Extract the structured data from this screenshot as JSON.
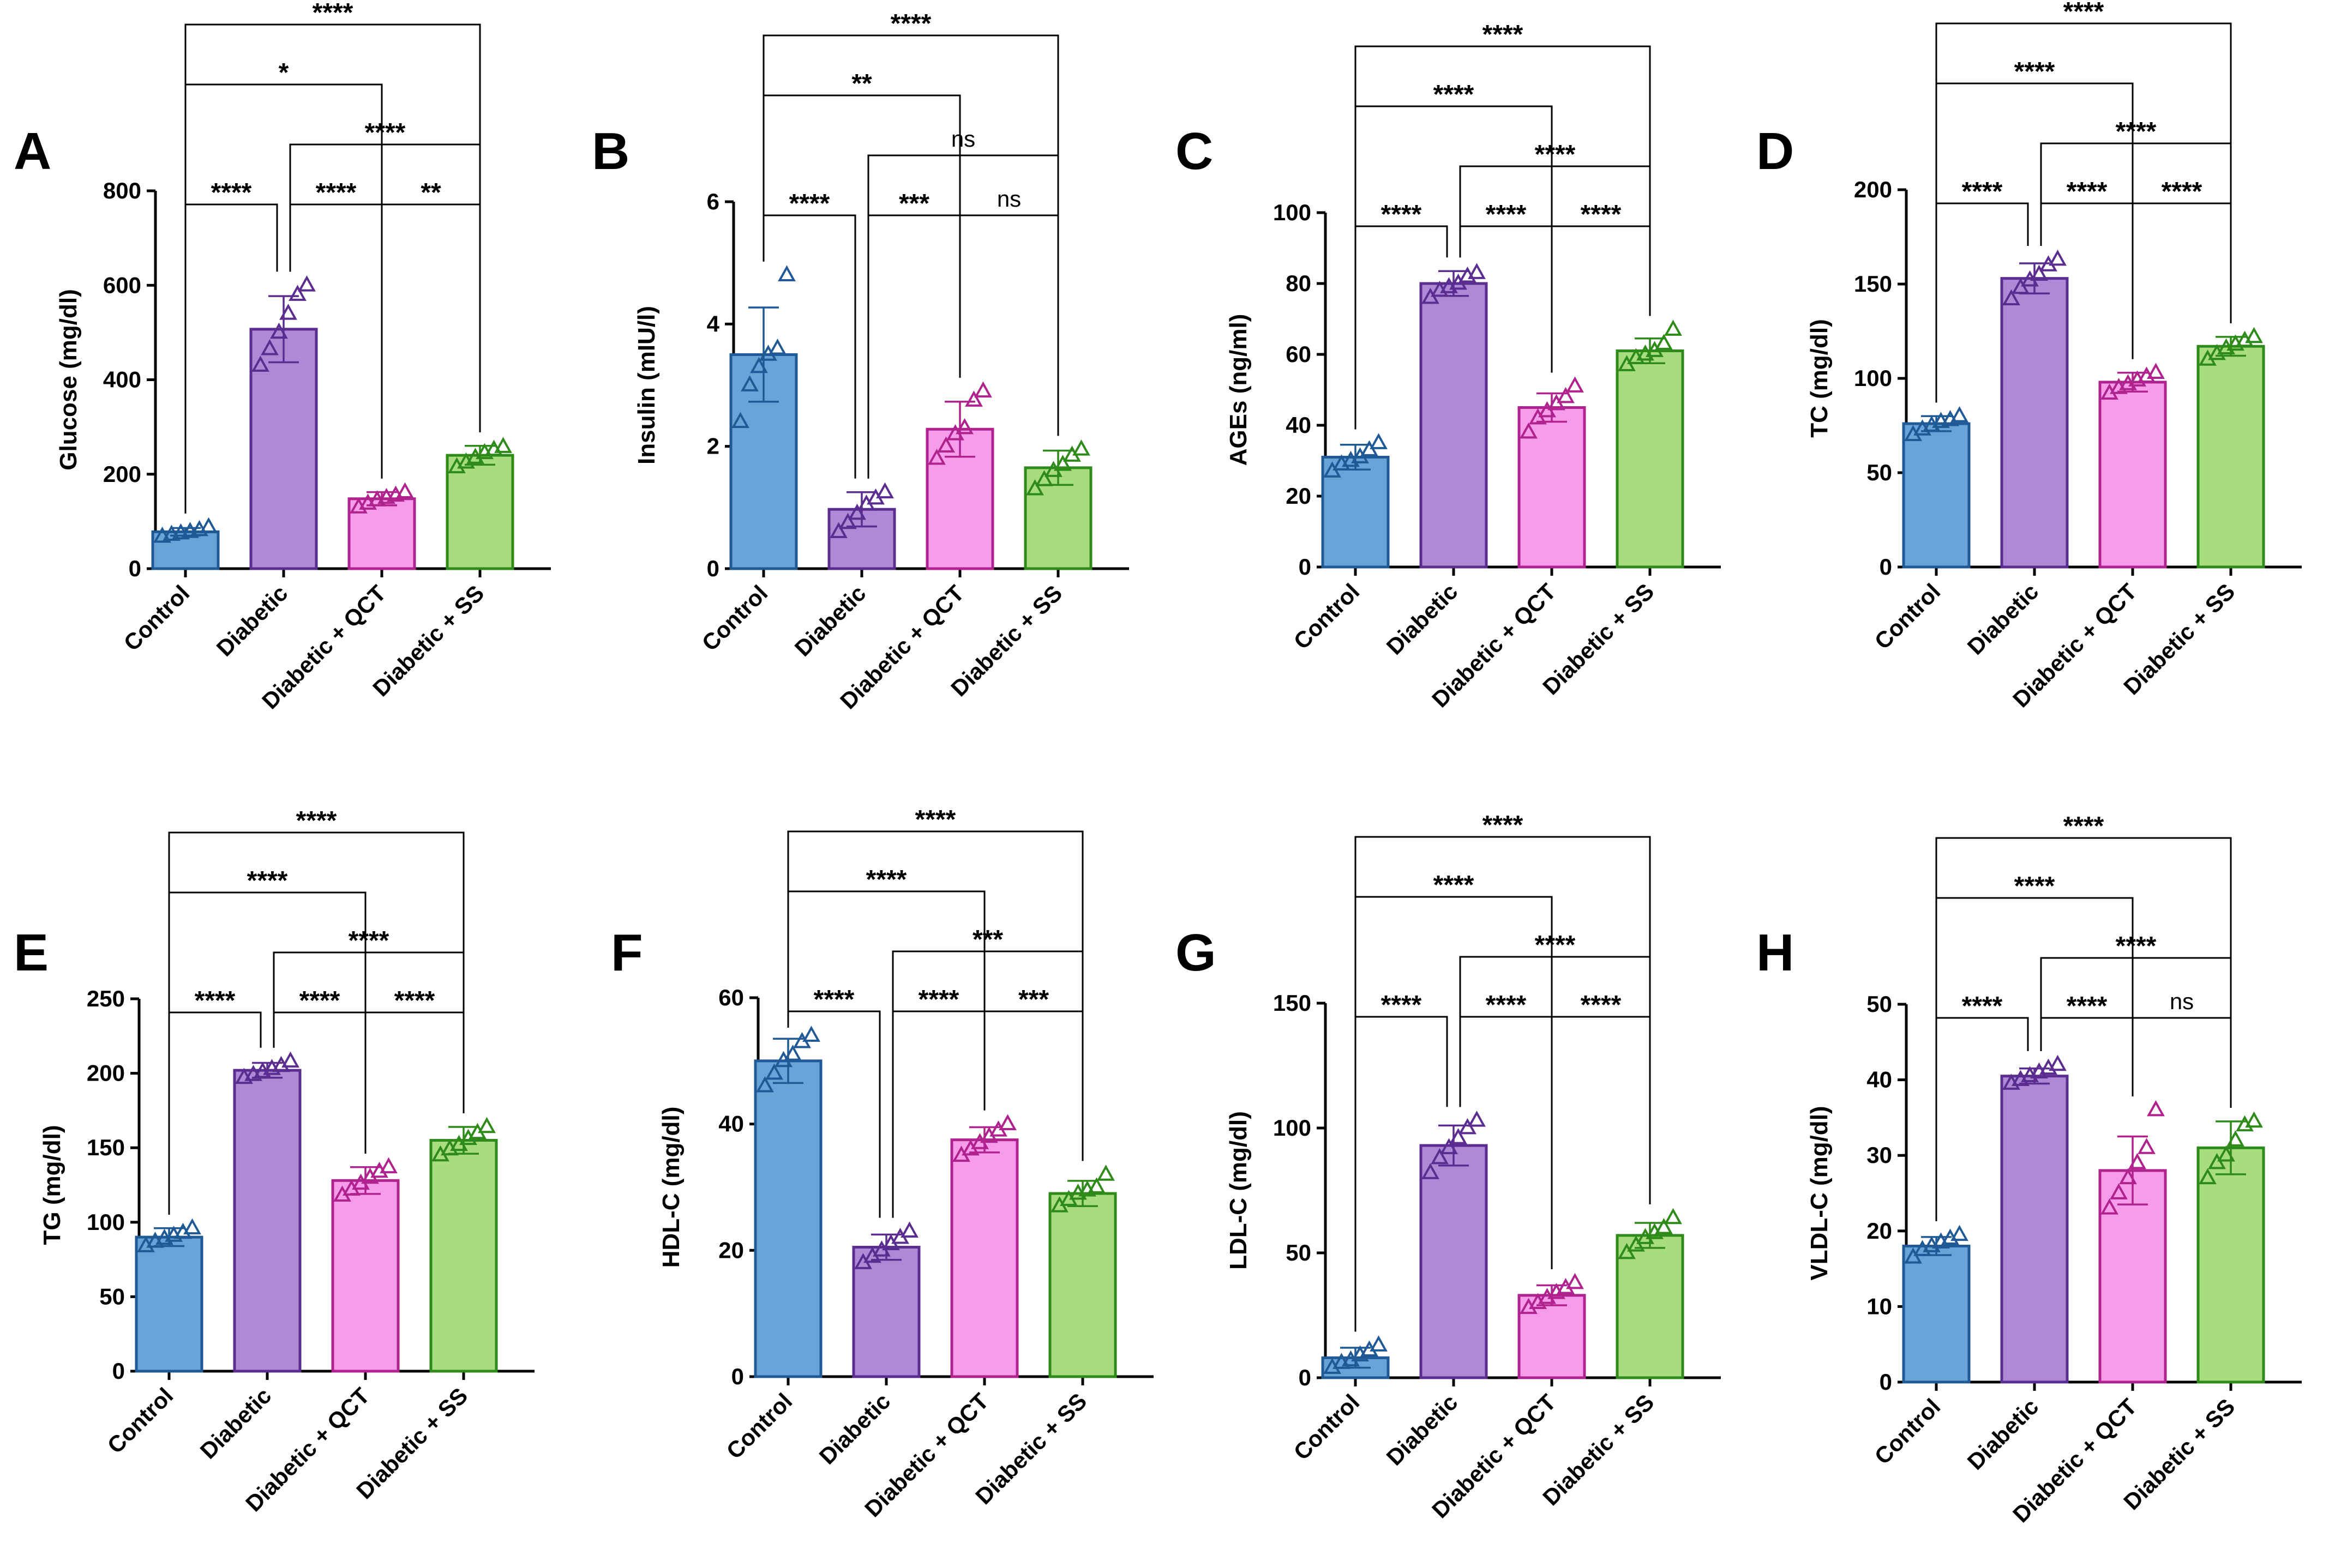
{
  "figure": {
    "background": "#ffffff",
    "group_colors": [
      {
        "fill": "#6aa3d8",
        "stroke": "#1f5a96"
      },
      {
        "fill": "#ae8ad6",
        "stroke": "#5b2d91"
      },
      {
        "fill": "#f79cea",
        "stroke": "#b0228d"
      },
      {
        "fill": "#a8dd7f",
        "stroke": "#2e8b1a"
      }
    ]
  },
  "chart_data": [
    {
      "panel": "A",
      "type": "bar",
      "categories": [
        "Control",
        "Diabetic",
        "Diabetic + QCT",
        "Diabetic + SS"
      ],
      "values": [
        78,
        507,
        148,
        240
      ],
      "errors": [
        8,
        70,
        14,
        20
      ],
      "points": [
        [
          68,
          72,
          75,
          78,
          82,
          88
        ],
        [
          430,
          465,
          500,
          540,
          580,
          600
        ],
        [
          130,
          138,
          145,
          150,
          155,
          162
        ],
        [
          215,
          225,
          235,
          245,
          252,
          258
        ]
      ],
      "ylabel": "Glucose (mg/dl)",
      "ylim": [
        0,
        800
      ],
      "yticks": [
        0,
        200,
        400,
        600,
        800
      ],
      "comparisons": [
        {
          "pair": [
            0,
            1
          ],
          "label": "****"
        },
        {
          "pair": [
            1,
            2
          ],
          "label": "****"
        },
        {
          "pair": [
            2,
            3
          ],
          "label": "**"
        },
        {
          "pair": [
            1,
            3
          ],
          "label": "****"
        },
        {
          "pair": [
            0,
            2
          ],
          "label": "*"
        },
        {
          "pair": [
            0,
            3
          ],
          "label": "****"
        }
      ]
    },
    {
      "panel": "B",
      "type": "bar",
      "categories": [
        "Control",
        "Diabetic",
        "Diabetic + QCT",
        "Diabetic + SS"
      ],
      "values": [
        3.5,
        0.97,
        2.28,
        1.65
      ],
      "errors": [
        0.77,
        0.28,
        0.45,
        0.28
      ],
      "points": [
        [
          2.4,
          3.0,
          3.3,
          3.5,
          3.6,
          4.8
        ],
        [
          0.6,
          0.75,
          0.9,
          1.05,
          1.15,
          1.25
        ],
        [
          1.8,
          2.0,
          2.2,
          2.3,
          2.75,
          2.9
        ],
        [
          1.3,
          1.45,
          1.6,
          1.7,
          1.85,
          1.95
        ]
      ],
      "ylabel": "Insulin (mIU/l)",
      "ylim": [
        0,
        6
      ],
      "yticks": [
        0,
        2,
        4,
        6
      ],
      "comparisons": [
        {
          "pair": [
            0,
            1
          ],
          "label": "****"
        },
        {
          "pair": [
            1,
            2
          ],
          "label": "***"
        },
        {
          "pair": [
            2,
            3
          ],
          "label": "ns"
        },
        {
          "pair": [
            1,
            3
          ],
          "label": "ns"
        },
        {
          "pair": [
            0,
            2
          ],
          "label": "**"
        },
        {
          "pair": [
            0,
            3
          ],
          "label": "****"
        }
      ]
    },
    {
      "panel": "C",
      "type": "bar",
      "categories": [
        "Control",
        "Diabetic",
        "Diabetic + QCT",
        "Diabetic + SS"
      ],
      "values": [
        31,
        80,
        45,
        61
      ],
      "errors": [
        3.5,
        3.5,
        4,
        3.5
      ],
      "points": [
        [
          27,
          29,
          30,
          31,
          33,
          35
        ],
        [
          76,
          78,
          79,
          80,
          82,
          83
        ],
        [
          38,
          42,
          44,
          46,
          48,
          51
        ],
        [
          57,
          59,
          60,
          61,
          63,
          67
        ]
      ],
      "ylabel": "AGEs (ng/ml)",
      "ylim": [
        0,
        100
      ],
      "yticks": [
        0,
        20,
        40,
        60,
        80,
        100
      ],
      "comparisons": [
        {
          "pair": [
            0,
            1
          ],
          "label": "****"
        },
        {
          "pair": [
            1,
            2
          ],
          "label": "****"
        },
        {
          "pair": [
            2,
            3
          ],
          "label": "****"
        },
        {
          "pair": [
            1,
            3
          ],
          "label": "****"
        },
        {
          "pair": [
            0,
            2
          ],
          "label": "****"
        },
        {
          "pair": [
            0,
            3
          ],
          "label": "****"
        }
      ]
    },
    {
      "panel": "D",
      "type": "bar",
      "categories": [
        "Control",
        "Diabetic",
        "Diabetic + QCT",
        "Diabetic + SS"
      ],
      "values": [
        76,
        153,
        98,
        117
      ],
      "errors": [
        4,
        8,
        5,
        5
      ],
      "points": [
        [
          70,
          73,
          75,
          77,
          78,
          80
        ],
        [
          142,
          148,
          152,
          155,
          160,
          163
        ],
        [
          92,
          95,
          97,
          99,
          101,
          103
        ],
        [
          110,
          113,
          116,
          118,
          120,
          122
        ]
      ],
      "ylabel": "TC (mg/dl)",
      "ylim": [
        0,
        200
      ],
      "yticks": [
        0,
        50,
        100,
        150,
        200
      ],
      "comparisons": [
        {
          "pair": [
            0,
            1
          ],
          "label": "****"
        },
        {
          "pair": [
            1,
            2
          ],
          "label": "****"
        },
        {
          "pair": [
            2,
            3
          ],
          "label": "****"
        },
        {
          "pair": [
            1,
            3
          ],
          "label": "****"
        },
        {
          "pair": [
            0,
            2
          ],
          "label": "****"
        },
        {
          "pair": [
            0,
            3
          ],
          "label": "****"
        }
      ]
    },
    {
      "panel": "E",
      "type": "bar",
      "categories": [
        "Control",
        "Diabetic",
        "Diabetic + QCT",
        "Diabetic + SS"
      ],
      "values": [
        90,
        202,
        128,
        155
      ],
      "errors": [
        6,
        5,
        9,
        9
      ],
      "points": [
        [
          84,
          87,
          89,
          91,
          93,
          96
        ],
        [
          197,
          199,
          201,
          203,
          205,
          208
        ],
        [
          118,
          122,
          126,
          130,
          134,
          137
        ],
        [
          145,
          149,
          152,
          156,
          160,
          164
        ]
      ],
      "ylabel": "TG (mg/dl)",
      "ylim": [
        0,
        250
      ],
      "yticks": [
        0,
        50,
        100,
        150,
        200,
        250
      ],
      "comparisons": [
        {
          "pair": [
            0,
            1
          ],
          "label": "****"
        },
        {
          "pair": [
            1,
            2
          ],
          "label": "****"
        },
        {
          "pair": [
            2,
            3
          ],
          "label": "****"
        },
        {
          "pair": [
            1,
            3
          ],
          "label": "****"
        },
        {
          "pair": [
            0,
            2
          ],
          "label": "****"
        },
        {
          "pair": [
            0,
            3
          ],
          "label": "****"
        }
      ]
    },
    {
      "panel": "F",
      "type": "bar",
      "categories": [
        "Control",
        "Diabetic",
        "Diabetic + QCT",
        "Diabetic + SS"
      ],
      "values": [
        50,
        20.5,
        37.5,
        29
      ],
      "errors": [
        3.5,
        2,
        2,
        2
      ],
      "points": [
        [
          46,
          48,
          50,
          51,
          53,
          54
        ],
        [
          18,
          19,
          20,
          21,
          22,
          23
        ],
        [
          35,
          36,
          37,
          38,
          39,
          40
        ],
        [
          27,
          28,
          29,
          29.5,
          30,
          32
        ]
      ],
      "ylabel": "HDL-C (mg/dl)",
      "ylim": [
        0,
        60
      ],
      "yticks": [
        0,
        20,
        40,
        60
      ],
      "comparisons": [
        {
          "pair": [
            0,
            1
          ],
          "label": "****"
        },
        {
          "pair": [
            1,
            2
          ],
          "label": "****"
        },
        {
          "pair": [
            2,
            3
          ],
          "label": "***"
        },
        {
          "pair": [
            1,
            3
          ],
          "label": "***"
        },
        {
          "pair": [
            0,
            2
          ],
          "label": "****"
        },
        {
          "pair": [
            0,
            3
          ],
          "label": "****"
        }
      ]
    },
    {
      "panel": "G",
      "type": "bar",
      "categories": [
        "Control",
        "Diabetic",
        "Diabetic + QCT",
        "Diabetic + SS"
      ],
      "values": [
        8,
        93,
        33,
        57
      ],
      "errors": [
        4,
        8,
        4,
        5
      ],
      "points": [
        [
          4,
          6,
          7,
          9,
          11,
          13
        ],
        [
          82,
          88,
          92,
          96,
          100,
          103
        ],
        [
          28,
          30,
          32,
          34,
          36,
          38
        ],
        [
          50,
          53,
          56,
          58,
          60,
          64
        ]
      ],
      "ylabel": "LDL-C (mg/dl)",
      "ylim": [
        0,
        150
      ],
      "yticks": [
        0,
        50,
        100,
        150
      ],
      "comparisons": [
        {
          "pair": [
            0,
            1
          ],
          "label": "****"
        },
        {
          "pair": [
            1,
            2
          ],
          "label": "****"
        },
        {
          "pair": [
            2,
            3
          ],
          "label": "****"
        },
        {
          "pair": [
            1,
            3
          ],
          "label": "****"
        },
        {
          "pair": [
            0,
            2
          ],
          "label": "****"
        },
        {
          "pair": [
            0,
            3
          ],
          "label": "****"
        }
      ]
    },
    {
      "panel": "H",
      "type": "bar",
      "categories": [
        "Control",
        "Diabetic",
        "Diabetic + QCT",
        "Diabetic + SS"
      ],
      "values": [
        18,
        40.5,
        28,
        31
      ],
      "errors": [
        1.2,
        1,
        4.5,
        3.5
      ],
      "points": [
        [
          16.5,
          17.5,
          18,
          18.5,
          19,
          19.5
        ],
        [
          39.5,
          40,
          40.5,
          41,
          41.5,
          42
        ],
        [
          23,
          25,
          27,
          29,
          31,
          36
        ],
        [
          27,
          29,
          30,
          32,
          34,
          34.5
        ]
      ],
      "ylabel": "VLDL-C (mg/dl)",
      "ylim": [
        0,
        50
      ],
      "yticks": [
        0,
        10,
        20,
        30,
        40,
        50
      ],
      "comparisons": [
        {
          "pair": [
            0,
            1
          ],
          "label": "****"
        },
        {
          "pair": [
            1,
            2
          ],
          "label": "****"
        },
        {
          "pair": [
            2,
            3
          ],
          "label": "ns"
        },
        {
          "pair": [
            1,
            3
          ],
          "label": "****"
        },
        {
          "pair": [
            0,
            2
          ],
          "label": "****"
        },
        {
          "pair": [
            0,
            3
          ],
          "label": "****"
        }
      ]
    }
  ]
}
